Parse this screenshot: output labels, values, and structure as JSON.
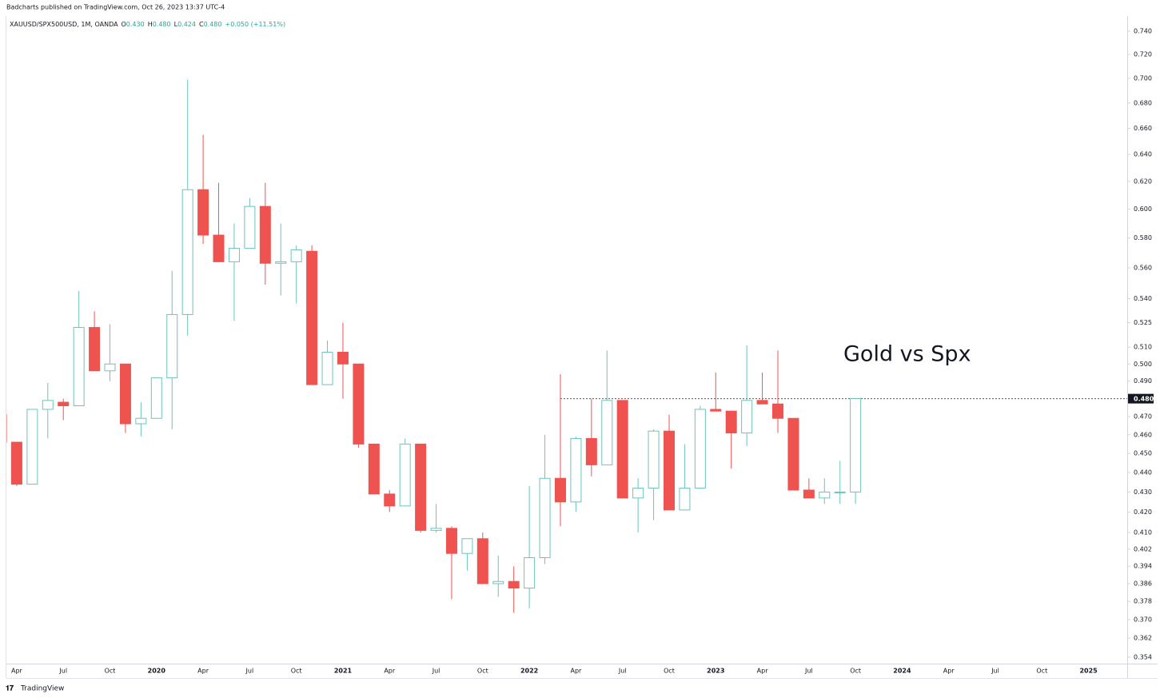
{
  "header": {
    "publisher": "Badcharts published on TradingView.com, Oct 26, 2023 13:37 UTC-4",
    "symbol": "XAUUSD/SPX500USD, 1M, OANDA",
    "ohlc": [
      {
        "label": "O",
        "value": "0.430"
      },
      {
        "label": "H",
        "value": "0.480"
      },
      {
        "label": "L",
        "value": "0.424"
      },
      {
        "label": "C",
        "value": "0.480"
      }
    ],
    "change": "+0.050 (+11.51%)"
  },
  "footer": {
    "brand": "TradingView"
  },
  "chart_data": {
    "type": "candlestick",
    "annotation": "Gold vs Spx",
    "price_line": {
      "value": 0.48,
      "label": "0.480"
    },
    "log_scale": true,
    "up_color": "#6cc4bb",
    "down_color": "#ef5350",
    "categories": [
      null,
      "Apr",
      null,
      null,
      "Jul",
      null,
      null,
      "Oct",
      null,
      null,
      "2020",
      null,
      null,
      "Apr",
      null,
      null,
      "Jul",
      null,
      null,
      "Oct",
      null,
      null,
      "2021",
      null,
      null,
      "Apr",
      null,
      null,
      "Jul",
      null,
      null,
      "Oct",
      null,
      null,
      "2022",
      null,
      null,
      "Apr",
      null,
      null,
      "Jul",
      null,
      null,
      "Oct",
      null,
      null,
      "2023",
      null,
      null,
      "Apr",
      null,
      null,
      "Jul",
      null,
      null,
      "Oct",
      null,
      null,
      "2024",
      null,
      null,
      "Apr",
      null,
      null,
      "Jul",
      null,
      null,
      "Oct",
      null,
      null,
      "2025",
      null,
      null
    ],
    "open": [
      0.471,
      0.456,
      0.434,
      0.474,
      0.478,
      0.476,
      0.522,
      0.496,
      0.5,
      0.466,
      0.469,
      0.492,
      0.53,
      0.614,
      0.582,
      0.564,
      0.573,
      0.602,
      0.563,
      0.564,
      0.571,
      0.488,
      0.507,
      0.5,
      0.455,
      0.429,
      0.423,
      0.455,
      0.411,
      0.412,
      0.4,
      0.407,
      0.386,
      0.387,
      0.384,
      0.398,
      0.437,
      0.425,
      0.458,
      0.444,
      0.479,
      0.427,
      0.432,
      0.462,
      0.421,
      0.432,
      0.474,
      0.473,
      0.461,
      0.479,
      0.477,
      0.469,
      0.431,
      0.427,
      0.43,
      0.43,
      null,
      null,
      null,
      null,
      null,
      null,
      null,
      null,
      null,
      null,
      null,
      null,
      null,
      null,
      null,
      null,
      null
    ],
    "high": [
      0.471,
      0.456,
      0.474,
      0.489,
      0.48,
      0.545,
      0.532,
      0.524,
      0.5,
      0.478,
      0.492,
      0.558,
      0.699,
      0.655,
      0.619,
      0.59,
      0.608,
      0.619,
      0.59,
      0.575,
      0.575,
      0.514,
      0.525,
      0.5,
      0.455,
      0.431,
      0.458,
      0.455,
      0.424,
      0.413,
      0.407,
      0.41,
      0.399,
      0.394,
      0.433,
      0.46,
      0.494,
      0.459,
      0.48,
      0.508,
      0.479,
      0.437,
      0.463,
      0.471,
      0.455,
      0.476,
      0.495,
      0.473,
      0.511,
      0.495,
      0.508,
      0.469,
      0.437,
      0.437,
      0.446,
      0.48,
      null,
      null,
      null,
      null,
      null,
      null,
      null,
      null,
      null,
      null,
      null,
      null,
      null,
      null,
      null,
      null,
      null
    ],
    "low": [
      0.456,
      0.433,
      0.434,
      0.458,
      0.468,
      0.476,
      0.496,
      0.49,
      0.461,
      0.459,
      0.469,
      0.463,
      0.517,
      0.576,
      0.564,
      0.526,
      0.573,
      0.549,
      0.542,
      0.537,
      0.488,
      0.488,
      0.48,
      0.453,
      0.429,
      0.42,
      0.423,
      0.41,
      0.41,
      0.379,
      0.392,
      0.386,
      0.38,
      0.373,
      0.375,
      0.395,
      0.413,
      0.42,
      0.438,
      0.444,
      0.427,
      0.41,
      0.416,
      0.421,
      0.421,
      0.432,
      0.473,
      0.442,
      0.454,
      0.477,
      0.461,
      0.431,
      0.427,
      0.424,
      0.424,
      0.424,
      null,
      null,
      null,
      null,
      null,
      null,
      null,
      null,
      null,
      null,
      null,
      null,
      null,
      null,
      null,
      null,
      null
    ],
    "close": [
      0.456,
      0.434,
      0.474,
      0.479,
      0.476,
      0.522,
      0.496,
      0.5,
      0.466,
      0.469,
      0.492,
      0.53,
      0.614,
      0.582,
      0.564,
      0.573,
      0.602,
      0.563,
      0.564,
      0.572,
      0.488,
      0.507,
      0.5,
      0.455,
      0.429,
      0.423,
      0.455,
      0.411,
      0.412,
      0.4,
      0.407,
      0.386,
      0.387,
      0.384,
      0.398,
      0.437,
      0.425,
      0.458,
      0.444,
      0.479,
      0.427,
      0.432,
      0.462,
      0.421,
      0.432,
      0.474,
      0.473,
      0.461,
      0.479,
      0.477,
      0.469,
      0.431,
      0.427,
      0.43,
      0.43,
      0.48,
      null,
      null,
      null,
      null,
      null,
      null,
      null,
      null,
      null,
      null,
      null,
      null,
      null,
      null,
      null,
      null,
      null
    ],
    "ylim": [
      0.3513,
      0.7534
    ],
    "yticks": [
      {
        "value": 0.74,
        "label": "0.740"
      },
      {
        "value": 0.72,
        "label": "0.720"
      },
      {
        "value": 0.7,
        "label": "0.700"
      },
      {
        "value": 0.68,
        "label": "0.680"
      },
      {
        "value": 0.66,
        "label": "0.660"
      },
      {
        "value": 0.64,
        "label": "0.640"
      },
      {
        "value": 0.62,
        "label": "0.620"
      },
      {
        "value": 0.6,
        "label": "0.600"
      },
      {
        "value": 0.58,
        "label": "0.580"
      },
      {
        "value": 0.56,
        "label": "0.560"
      },
      {
        "value": 0.54,
        "label": "0.540"
      },
      0.525,
      {
        "value": 0.51,
        "label": "0.510"
      },
      {
        "value": 0.5,
        "label": "0.500"
      },
      {
        "value": 0.49,
        "label": "0.490"
      },
      {
        "value": 0.47,
        "label": "0.470"
      },
      {
        "value": 0.46,
        "label": "0.460"
      },
      {
        "value": 0.45,
        "label": "0.450"
      },
      {
        "value": 0.44,
        "label": "0.440"
      },
      {
        "value": 0.43,
        "label": "0.430"
      },
      {
        "value": 0.42,
        "label": "0.420"
      },
      {
        "value": 0.41,
        "label": "0.410"
      },
      0.402,
      0.394,
      0.386,
      0.378,
      {
        "value": 0.37,
        "label": "0.370"
      },
      0.362,
      0.354
    ]
  }
}
